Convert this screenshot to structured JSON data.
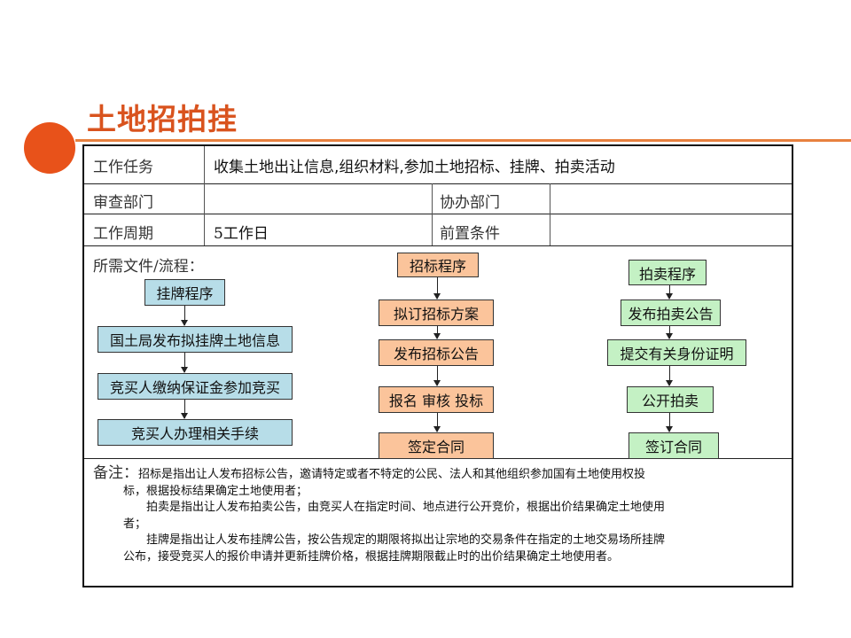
{
  "title": "土地招拍挂",
  "table": {
    "task_label": "工作任务",
    "task_value": "收集土地出让信息,组织材料,参加土地招标、挂牌、拍卖活动",
    "review_label": "审查部门",
    "review_value": "",
    "assist_label": "协办部门",
    "assist_value": "",
    "cycle_label": "工作周期",
    "cycle_value": "5工作日",
    "precond_label": "前置条件",
    "precond_value": "",
    "docs_label": "所需文件/流程："
  },
  "flows": {
    "listing": [
      "挂牌程序",
      "国土局发布拟挂牌土地信息",
      "竞买人缴纳保证金参加竞买",
      "竞买人办理相关手续"
    ],
    "tender": [
      "招标程序",
      "拟订招标方案",
      "发布招标公告",
      "报名 审核 投标",
      "签定合同"
    ],
    "auction": [
      "拍卖程序",
      "发布拍卖公告",
      "提交有关身份证明",
      "公开拍卖",
      "签订合同"
    ]
  },
  "notes": {
    "label": "备注：",
    "p1a": "招标是指出让人发布招标公告，邀请特定或者不特定的公民、法人和其他组织参加国有土地使用权投",
    "p1b": "标，根据投标结果确定土地使用者；",
    "p2a": "拍卖是指出让人发布拍卖公告，由竞买人在指定时间、地点进行公开竞价，根据出价结果确定土地使用",
    "p2b": "者；",
    "p3a": "挂牌是指出让人发布挂牌公告，按公告规定的期限将拟出让宗地的交易条件在指定的土地交易场所挂牌",
    "p3b": "公布，接受竞买人的报价申请并更新挂牌价格，根据挂牌期限截止时的出价结果确定土地使用者。"
  },
  "colors": {
    "accent": "#e8521a",
    "listing": "#b7dde8",
    "tender": "#fbc49b",
    "auction": "#c4f1c4"
  }
}
